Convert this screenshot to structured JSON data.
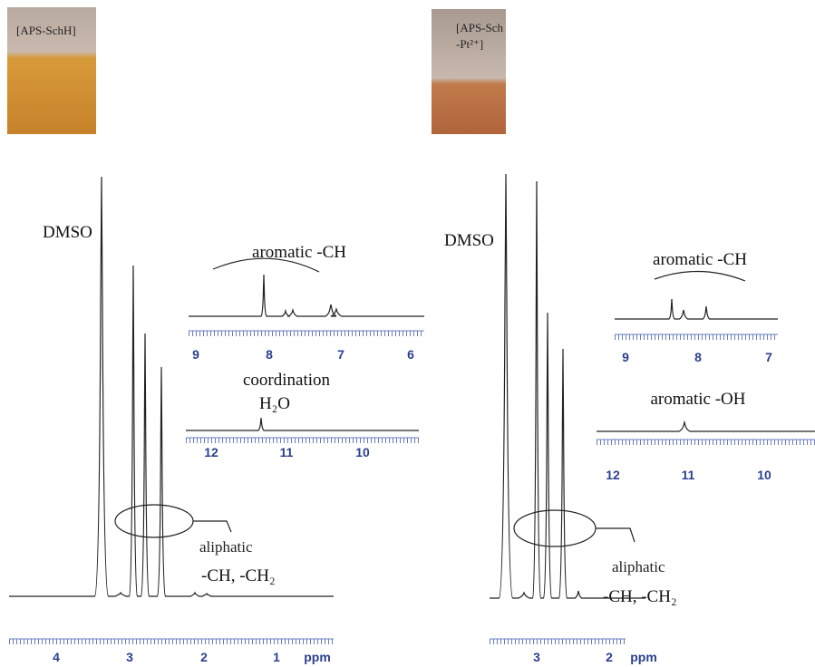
{
  "panels": [
    {
      "photo_label": [
        "[APS-SchH]"
      ],
      "solvent": "DMSO",
      "inset_top": {
        "annotation": "aromatic -CH",
        "ticks": [
          "9",
          "8",
          "7",
          "6"
        ]
      },
      "inset_bottom": {
        "annotation": [
          "coordination",
          "H₂O"
        ],
        "ticks": [
          "12",
          "11",
          "10"
        ]
      },
      "region": [
        "aliphatic",
        "-CH, -CH₂"
      ],
      "axis_ticks": [
        "4",
        "3",
        "2",
        "1"
      ],
      "axis_unit": "ppm"
    },
    {
      "photo_label": [
        "[APS-Sch",
        "-Pt²⁺]"
      ],
      "solvent": "DMSO",
      "inset_top": {
        "annotation": "aromatic -CH",
        "ticks": [
          "9",
          "8",
          "7"
        ]
      },
      "inset_bottom": {
        "annotation": [
          "aromatic -OH"
        ],
        "ticks": [
          "12",
          "11",
          "10"
        ]
      },
      "region": [
        "aliphatic",
        "-CH, -CH₂"
      ],
      "axis_ticks": [
        "3",
        "2"
      ],
      "axis_unit": "ppm"
    }
  ]
}
